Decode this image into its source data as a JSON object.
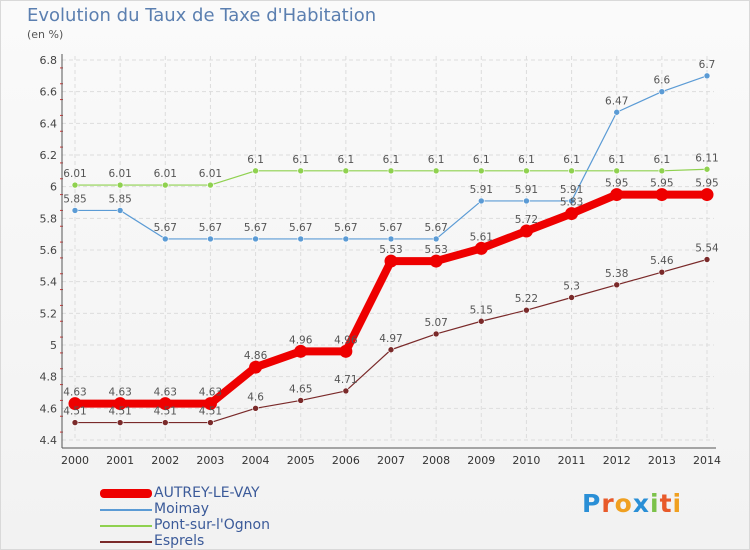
{
  "header": {
    "title": "Evolution du Taux de Taxe d'Habitation",
    "unit": "(en %)"
  },
  "chart_data": {
    "type": "line",
    "title": "Evolution du Taux de Taxe d'Habitation",
    "ylabel": "(en %)",
    "xlabel": "",
    "categories": [
      "2000",
      "2001",
      "2002",
      "2003",
      "2004",
      "2005",
      "2006",
      "2007",
      "2008",
      "2009",
      "2010",
      "2011",
      "2012",
      "2013",
      "2014"
    ],
    "ylim": [
      4.4,
      6.8
    ],
    "yticks": [
      "4.4",
      "4.6",
      "4.8",
      "5",
      "5.2",
      "5.4",
      "5.6",
      "5.8",
      "6",
      "6.2",
      "6.4",
      "6.6",
      "6.8"
    ],
    "grid": true,
    "legend_position": "bottom-left",
    "series": [
      {
        "name": "AUTREY-LE-VAY",
        "color": "#ee0000",
        "values": [
          4.63,
          4.63,
          4.63,
          4.63,
          4.86,
          4.96,
          4.96,
          5.53,
          5.53,
          5.61,
          5.72,
          5.83,
          5.95,
          5.95,
          5.95
        ],
        "labels": [
          "4.63",
          "4.63",
          "4.63",
          "4.63",
          "4.86",
          "4.96",
          "4.96",
          "5.53",
          "5.53",
          "5.61",
          "5.72",
          "5.83",
          "5.95",
          "5.95",
          "5.95"
        ]
      },
      {
        "name": "Moimay",
        "color": "#5b9bd5",
        "values": [
          5.85,
          5.85,
          5.67,
          5.67,
          5.67,
          5.67,
          5.67,
          5.67,
          5.67,
          5.91,
          5.91,
          5.91,
          6.47,
          6.6,
          6.7
        ],
        "labels": [
          "5.85",
          "5.85",
          "5.67",
          "5.67",
          "5.67",
          "5.67",
          "5.67",
          "5.67",
          "5.67",
          "5.91",
          "5.91",
          "5.91",
          "6.47",
          "6.6",
          "6.7"
        ]
      },
      {
        "name": "Pont-sur-l'Ognon",
        "color": "#8fd14f",
        "values": [
          6.01,
          6.01,
          6.01,
          6.01,
          6.1,
          6.1,
          6.1,
          6.1,
          6.1,
          6.1,
          6.1,
          6.1,
          6.1,
          6.1,
          6.11
        ],
        "labels": [
          "6.01",
          "6.01",
          "6.01",
          "6.01",
          "6.1",
          "6.1",
          "6.1",
          "6.1",
          "6.1",
          "6.1",
          "6.1",
          "6.1",
          "6.1",
          "6.1",
          "6.11"
        ]
      },
      {
        "name": "Esprels",
        "color": "#7a2a2a",
        "values": [
          4.51,
          4.51,
          4.51,
          4.51,
          4.6,
          4.65,
          4.71,
          4.97,
          5.07,
          5.15,
          5.22,
          5.3,
          5.38,
          5.46,
          5.54
        ],
        "labels": [
          "4.51",
          "4.51",
          "4.51",
          "4.51",
          "4.6",
          "4.65",
          "4.71",
          "4.97",
          "5.07",
          "5.15",
          "5.22",
          "5.3",
          "5.38",
          "5.46",
          "5.54"
        ]
      }
    ]
  },
  "legend": {
    "items": [
      {
        "label": "AUTREY-LE-VAY",
        "color": "#ee0000"
      },
      {
        "label": "Moimay",
        "color": "#5b9bd5"
      },
      {
        "label": "Pont-sur-l'Ognon",
        "color": "#8fd14f"
      },
      {
        "label": "Esprels",
        "color": "#7a2a2a"
      }
    ]
  },
  "logo": {
    "text": "Proxiti",
    "letters": [
      {
        "ch": "P",
        "color": "#2a8fd6"
      },
      {
        "ch": "r",
        "color": "#e85a2a"
      },
      {
        "ch": "o",
        "color": "#f0a020"
      },
      {
        "ch": "x",
        "color": "#2a8fd6"
      },
      {
        "ch": "i",
        "color": "#7cc24a"
      },
      {
        "ch": "t",
        "color": "#e85a2a"
      },
      {
        "ch": "i",
        "color": "#f0a020"
      }
    ]
  }
}
